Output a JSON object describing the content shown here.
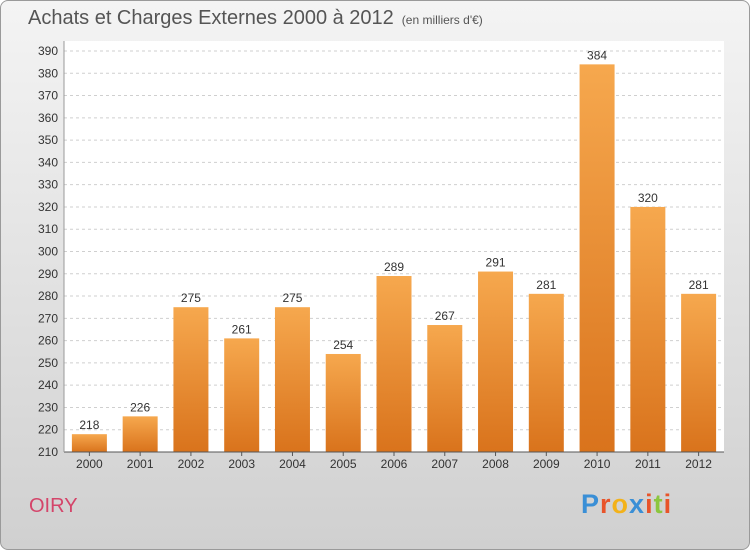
{
  "header": {
    "title": "Achats et Charges Externes 2000 à 2012",
    "subtitle": "(en milliers d'€)"
  },
  "footer": {
    "commune": "OIRY",
    "logo_letters": [
      "P",
      "r",
      "o",
      "x",
      "i",
      "t",
      "i"
    ],
    "logo_colors": [
      "#3a8fd6",
      "#e8542a",
      "#f3b21a",
      "#3a8fd6",
      "#e8542a",
      "#8cc63f",
      "#e8542a"
    ]
  },
  "chart_data": {
    "type": "bar",
    "categories": [
      "2000",
      "2001",
      "2002",
      "2003",
      "2004",
      "2005",
      "2006",
      "2007",
      "2008",
      "2009",
      "2010",
      "2011",
      "2012"
    ],
    "values": [
      218,
      226,
      275,
      261,
      275,
      254,
      289,
      267,
      291,
      281,
      384,
      320,
      281
    ],
    "ylim": [
      210,
      390
    ],
    "yticks": [
      210,
      220,
      230,
      240,
      250,
      260,
      270,
      280,
      290,
      300,
      310,
      320,
      330,
      340,
      350,
      360,
      370,
      380,
      390
    ],
    "bar_color_top": "#f6a84e",
    "bar_color_bottom": "#d9731c",
    "grid": "dashed-horizontal"
  }
}
